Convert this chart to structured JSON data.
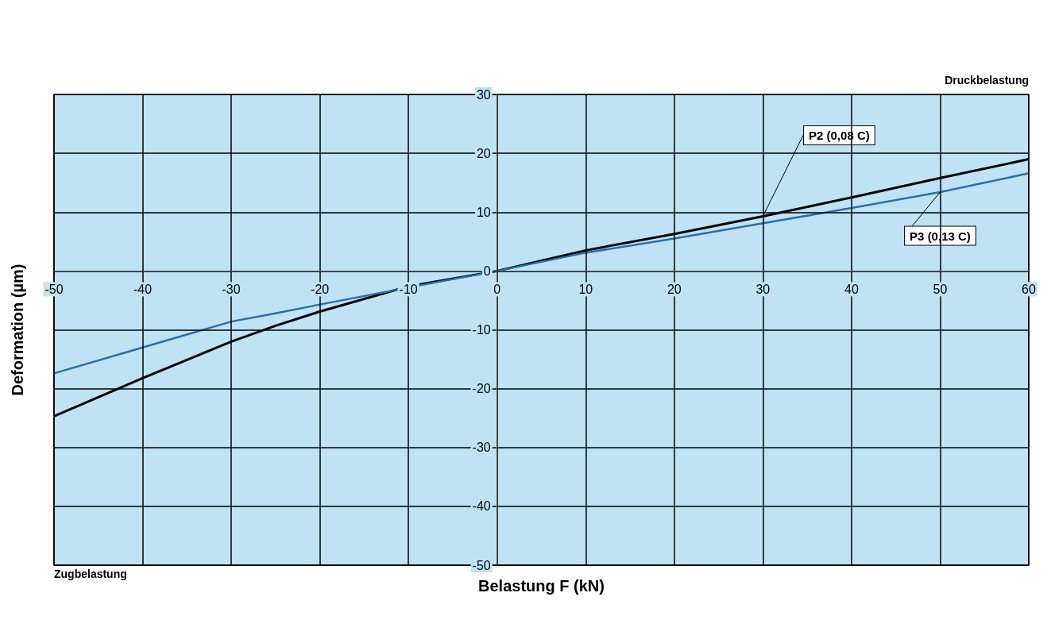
{
  "chart_data": {
    "type": "line",
    "xlabel": "Belastung F (kN)",
    "ylabel": "Deformation (µm)",
    "annotations": [
      "Druckbelastung",
      "Zugbelastung"
    ],
    "x": [
      -50,
      -40,
      -30,
      -25,
      -20,
      -10,
      0,
      10,
      20,
      30,
      40,
      50,
      60
    ],
    "xlim": [
      -50,
      60
    ],
    "xticks": [
      -50,
      -40,
      -30,
      -20,
      -10,
      0,
      10,
      20,
      30,
      40,
      50,
      60
    ],
    "ylim": [
      -50,
      30
    ],
    "yticks": [
      -50,
      -40,
      -30,
      -20,
      -10,
      0,
      10,
      20,
      30
    ],
    "grid": true,
    "legend": false,
    "marker": "none",
    "line_style": "solid",
    "series": [
      {
        "name": "P2 (0,08 C)",
        "color": "#000000",
        "values": [
          -24.7,
          -18.2,
          -12,
          -9.3,
          -6.9,
          -2.6,
          0,
          3.5,
          6.3,
          9.3,
          12.5,
          15.8,
          19
        ]
      },
      {
        "name": "P3 (0,13 C)",
        "color": "#2a6fa8",
        "values": [
          -17.4,
          -13,
          -8.6,
          -7.2,
          -5.7,
          -2.8,
          0,
          3.1,
          5.5,
          8.1,
          10.7,
          13.4,
          16.6
        ]
      }
    ]
  }
}
